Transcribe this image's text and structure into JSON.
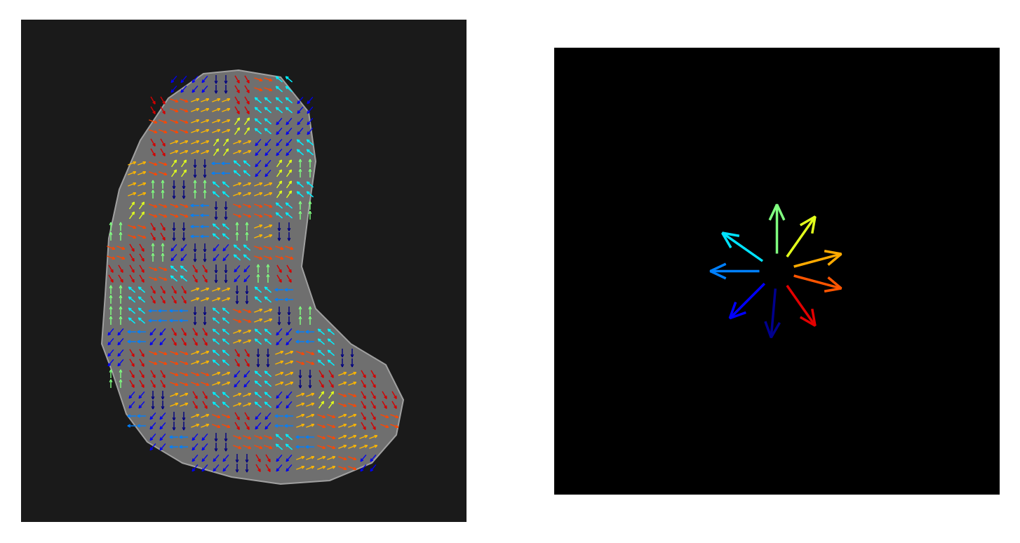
{
  "chart_data": [
    {
      "type": "quiver",
      "tick_labels": false,
      "xlim": [
        0,
        635
      ],
      "ylim": [
        716,
        0
      ],
      "x": [
        135,
        165,
        195,
        225,
        255,
        285,
        315,
        345,
        375,
        405,
        435,
        465,
        495,
        525
      ],
      "y": [
        92,
        122,
        152,
        182,
        212,
        242,
        272,
        302,
        332,
        362,
        392,
        422,
        452,
        482,
        512,
        542,
        572,
        602,
        632
      ],
      "angles": [
        [
          null,
          null,
          null,
          -130,
          -130,
          -90,
          -60,
          -20,
          140,
          null,
          null,
          null,
          null,
          null
        ],
        [
          null,
          null,
          -60,
          -20,
          20,
          20,
          -60,
          140,
          140,
          -130,
          null,
          null,
          null,
          null
        ],
        [
          null,
          null,
          -20,
          -20,
          20,
          20,
          55,
          140,
          -130,
          -130,
          null,
          null,
          null,
          null
        ],
        [
          null,
          null,
          -60,
          20,
          20,
          55,
          20,
          -130,
          -130,
          140,
          null,
          null,
          null,
          null
        ],
        [
          null,
          20,
          -20,
          55,
          -90,
          180,
          140,
          -130,
          55,
          90,
          null,
          null,
          null,
          null
        ],
        [
          null,
          20,
          90,
          -90,
          90,
          140,
          20,
          20,
          55,
          140,
          null,
          null,
          null,
          null
        ],
        [
          null,
          55,
          -20,
          -20,
          180,
          -90,
          -20,
          -20,
          140,
          90,
          null,
          null,
          null,
          null
        ],
        [
          90,
          -20,
          -60,
          -90,
          180,
          140,
          90,
          20,
          -90,
          null,
          null,
          null,
          null,
          null
        ],
        [
          -20,
          -60,
          90,
          -130,
          -90,
          -130,
          140,
          -20,
          -20,
          null,
          null,
          null,
          null,
          null
        ],
        [
          -60,
          -60,
          -20,
          140,
          -60,
          -90,
          -130,
          90,
          -60,
          null,
          null,
          null,
          null,
          null
        ],
        [
          90,
          140,
          -60,
          -60,
          20,
          20,
          -90,
          140,
          180,
          null,
          null,
          null,
          null,
          null
        ],
        [
          90,
          140,
          180,
          180,
          -90,
          140,
          -20,
          20,
          -90,
          90,
          null,
          null,
          null,
          null
        ],
        [
          -130,
          180,
          -130,
          -60,
          -60,
          140,
          20,
          140,
          -130,
          180,
          140,
          null,
          null,
          null
        ],
        [
          -130,
          -60,
          -20,
          -20,
          20,
          140,
          -60,
          -90,
          20,
          -20,
          140,
          -90,
          null,
          null
        ],
        [
          90,
          -60,
          -60,
          -20,
          -20,
          20,
          -130,
          140,
          20,
          -90,
          -60,
          20,
          -60,
          null
        ],
        [
          null,
          -130,
          -90,
          20,
          -60,
          140,
          20,
          140,
          -130,
          20,
          55,
          -20,
          -60,
          -60
        ],
        [
          null,
          180,
          -130,
          -90,
          20,
          -20,
          -60,
          -130,
          180,
          20,
          -20,
          20,
          -60,
          -20
        ],
        [
          null,
          null,
          -130,
          180,
          -130,
          -90,
          -20,
          -20,
          140,
          180,
          -20,
          20,
          20,
          null
        ],
        [
          null,
          null,
          null,
          null,
          -130,
          -130,
          -90,
          -60,
          -130,
          20,
          20,
          -20,
          -130,
          null
        ]
      ]
    },
    {
      "type": "direction_legend",
      "tick_labels": false,
      "xlim": [
        0,
        635
      ],
      "ylim": [
        637,
        0
      ],
      "angles": [
        90,
        55,
        15,
        -15,
        -55,
        -95,
        -135,
        180,
        145
      ]
    }
  ]
}
